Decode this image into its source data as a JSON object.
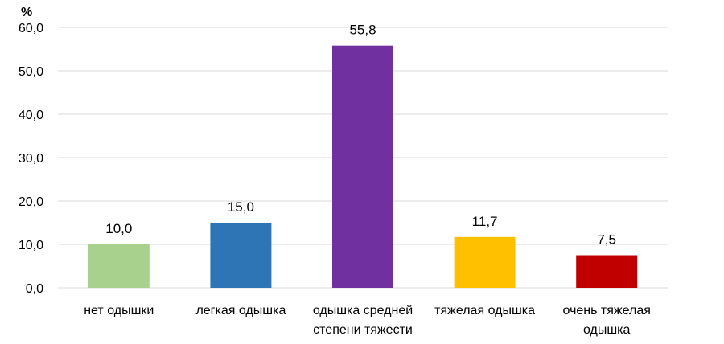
{
  "chart_data": {
    "type": "bar",
    "ylabel": "%",
    "ylim": [
      0,
      60
    ],
    "yticks": [
      "0,0",
      "10,0",
      "20,0",
      "30,0",
      "40,0",
      "50,0",
      "60,0"
    ],
    "grid": true,
    "categories": [
      [
        "нет одышки"
      ],
      [
        "легкая одышка"
      ],
      [
        "одышка средней",
        "степени тяжести"
      ],
      [
        "тяжелая одышка"
      ],
      [
        "очень тяжелая",
        "одышка"
      ]
    ],
    "values": [
      10.0,
      15.0,
      55.8,
      11.7,
      7.5
    ],
    "value_labels": [
      "10,0",
      "15,0",
      "55,8",
      "11,7",
      "7,5"
    ],
    "colors": [
      "#a9d18e",
      "#2e75b6",
      "#7030a0",
      "#ffc000",
      "#c00000"
    ]
  }
}
